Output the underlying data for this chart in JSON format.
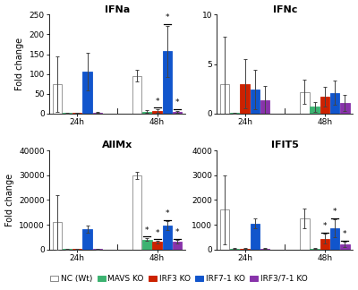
{
  "subplots": [
    {
      "title": "IFNa",
      "ylabel": "Fold change",
      "ylim": [
        0,
        250
      ],
      "yticks": [
        0,
        50,
        100,
        150,
        200,
        250
      ],
      "groups": [
        "24h",
        "48h"
      ],
      "bars": [
        {
          "label": "NC (Wt)",
          "color": "#FFFFFF",
          "edgecolor": "#888888",
          "values": [
            75,
            95
          ],
          "errors": [
            70,
            15
          ],
          "sig": [
            false,
            false
          ]
        },
        {
          "label": "MAVS KO",
          "color": "#3CB371",
          "edgecolor": "#3CB371",
          "values": [
            1,
            5
          ],
          "errors": [
            1,
            4
          ],
          "sig": [
            false,
            false
          ]
        },
        {
          "label": "IRF3 KO",
          "color": "#CC2200",
          "edgecolor": "#CC2200",
          "values": [
            2,
            7
          ],
          "errors": [
            1,
            4
          ],
          "sig": [
            false,
            true
          ]
        },
        {
          "label": "IRF7-1 KO",
          "color": "#1155CC",
          "edgecolor": "#1155CC",
          "values": [
            106,
            157
          ],
          "errors": [
            48,
            65
          ],
          "sig": [
            false,
            true
          ]
        },
        {
          "label": "IRF3/7-1 KO",
          "color": "#8833AA",
          "edgecolor": "#8833AA",
          "values": [
            3,
            4
          ],
          "errors": [
            2,
            3
          ],
          "sig": [
            false,
            true
          ]
        }
      ]
    },
    {
      "title": "IFNc",
      "ylabel": "",
      "ylim": [
        0,
        10
      ],
      "yticks": [
        0,
        5,
        10
      ],
      "groups": [
        "24h",
        "48h"
      ],
      "bars": [
        {
          "label": "NC (Wt)",
          "color": "#FFFFFF",
          "edgecolor": "#888888",
          "values": [
            3.0,
            2.2
          ],
          "errors": [
            4.8,
            1.2
          ],
          "sig": [
            false,
            false
          ]
        },
        {
          "label": "MAVS KO",
          "color": "#3CB371",
          "edgecolor": "#3CB371",
          "values": [
            0.05,
            0.7
          ],
          "errors": [
            0.04,
            0.5
          ],
          "sig": [
            false,
            false
          ]
        },
        {
          "label": "IRF3 KO",
          "color": "#CC2200",
          "edgecolor": "#CC2200",
          "values": [
            3.0,
            1.7
          ],
          "errors": [
            2.5,
            1.0
          ],
          "sig": [
            false,
            false
          ]
        },
        {
          "label": "IRF7-1 KO",
          "color": "#1155CC",
          "edgecolor": "#1155CC",
          "values": [
            2.4,
            2.1
          ],
          "errors": [
            2.0,
            1.2
          ],
          "sig": [
            false,
            false
          ]
        },
        {
          "label": "IRF3/7-1 KO",
          "color": "#8833AA",
          "edgecolor": "#8833AA",
          "values": [
            1.3,
            1.1
          ],
          "errors": [
            1.5,
            0.8
          ],
          "sig": [
            false,
            false
          ]
        }
      ]
    },
    {
      "title": "AllMx",
      "ylabel": "Fold change",
      "ylim": [
        0,
        40000
      ],
      "yticks": [
        0,
        10000,
        20000,
        30000,
        40000
      ],
      "groups": [
        "24h",
        "48h"
      ],
      "bars": [
        {
          "label": "NC (Wt)",
          "color": "#FFFFFF",
          "edgecolor": "#888888",
          "values": [
            11000,
            30000
          ],
          "errors": [
            11000,
            1500
          ],
          "sig": [
            false,
            false
          ]
        },
        {
          "label": "MAVS KO",
          "color": "#3CB371",
          "edgecolor": "#3CB371",
          "values": [
            100,
            4000
          ],
          "errors": [
            80,
            600
          ],
          "sig": [
            false,
            true
          ]
        },
        {
          "label": "IRF3 KO",
          "color": "#CC2200",
          "edgecolor": "#CC2200",
          "values": [
            100,
            3000
          ],
          "errors": [
            80,
            500
          ],
          "sig": [
            false,
            true
          ]
        },
        {
          "label": "IRF7-1 KO",
          "color": "#1155CC",
          "edgecolor": "#1155CC",
          "values": [
            8200,
            9500
          ],
          "errors": [
            1500,
            1800
          ],
          "sig": [
            false,
            true
          ]
        },
        {
          "label": "IRF3/7-1 KO",
          "color": "#8833AA",
          "edgecolor": "#8833AA",
          "values": [
            100,
            3000
          ],
          "errors": [
            80,
            700
          ],
          "sig": [
            false,
            true
          ]
        }
      ]
    },
    {
      "title": "IFIT5",
      "ylabel": "",
      "ylim": [
        0,
        4000
      ],
      "yticks": [
        0,
        1000,
        2000,
        3000,
        4000
      ],
      "groups": [
        "24h",
        "48h"
      ],
      "bars": [
        {
          "label": "NC (Wt)",
          "color": "#FFFFFF",
          "edgecolor": "#888888",
          "values": [
            1600,
            1250
          ],
          "errors": [
            1400,
            400
          ],
          "sig": [
            false,
            false
          ]
        },
        {
          "label": "MAVS KO",
          "color": "#3CB371",
          "edgecolor": "#3CB371",
          "values": [
            30,
            30
          ],
          "errors": [
            20,
            20
          ],
          "sig": [
            false,
            false
          ]
        },
        {
          "label": "IRF3 KO",
          "color": "#CC2200",
          "edgecolor": "#CC2200",
          "values": [
            30,
            430
          ],
          "errors": [
            20,
            200
          ],
          "sig": [
            false,
            true
          ]
        },
        {
          "label": "IRF7-1 KO",
          "color": "#1155CC",
          "edgecolor": "#1155CC",
          "values": [
            1050,
            860
          ],
          "errors": [
            200,
            350
          ],
          "sig": [
            false,
            true
          ]
        },
        {
          "label": "IRF3/7-1 KO",
          "color": "#8833AA",
          "edgecolor": "#8833AA",
          "values": [
            30,
            200
          ],
          "errors": [
            20,
            100
          ],
          "sig": [
            false,
            true
          ]
        }
      ]
    }
  ],
  "legend_labels": [
    "NC (Wt)",
    "MAVS KO",
    "IRF3 KO",
    "IRF7-1 KO",
    "IRF3/7-1 KO"
  ],
  "legend_colors": [
    "#FFFFFF",
    "#3CB371",
    "#CC2200",
    "#1155CC",
    "#8833AA"
  ],
  "legend_edgecolors": [
    "#888888",
    "#3CB371",
    "#CC2200",
    "#1155CC",
    "#8833AA"
  ],
  "bar_width": 0.13,
  "background_color": "#FFFFFF",
  "title_fontsize": 8,
  "label_fontsize": 7,
  "tick_fontsize": 6.5,
  "legend_fontsize": 6.5
}
